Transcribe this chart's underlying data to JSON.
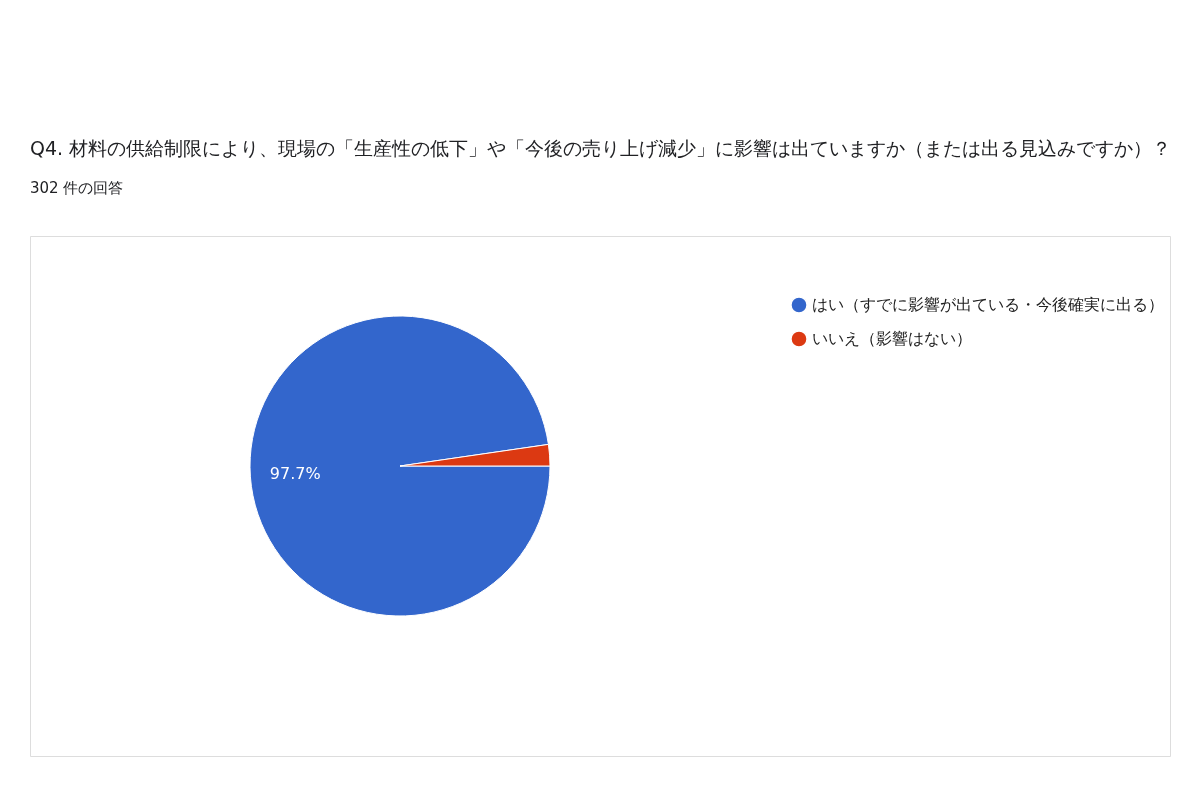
{
  "chart_data": {
    "type": "pie",
    "title": "Q4. 材料の供給制限により、現場の「生産性の低下」や「今後の売り上げ減少」に影響は出ていますか（または出る見込みですか）？",
    "subtitle": "302 件の回答",
    "categories": [
      "はい（すでに影響が出ている・今後確実に出る）",
      "いいえ（影響はない）"
    ],
    "values": [
      97.7,
      2.3
    ],
    "colors": [
      "#3366cc",
      "#dc3912"
    ],
    "value_labels": [
      "97.7%",
      null
    ],
    "legend": "right"
  }
}
